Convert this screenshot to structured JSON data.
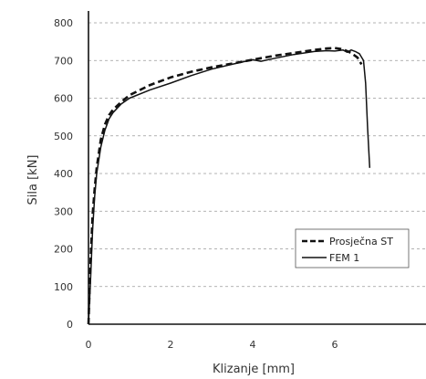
{
  "chart_data": {
    "type": "line",
    "xlabel": "Klizanje [mm]",
    "ylabel": "Sila [kN]",
    "xlim": [
      0,
      8
    ],
    "ylim": [
      0,
      800
    ],
    "xticks": [
      0,
      2,
      4,
      6
    ],
    "yticks": [
      0,
      100,
      200,
      300,
      400,
      500,
      600,
      700,
      800
    ],
    "grid": "horizontal dashed",
    "legend_position": "lower-right",
    "series": [
      {
        "name": "Prosječna ST",
        "style": "dashed",
        "color": "#111111",
        "x": [
          0,
          0.05,
          0.1,
          0.15,
          0.2,
          0.3,
          0.4,
          0.5,
          0.6,
          0.8,
          1.0,
          1.5,
          2.0,
          2.5,
          3.0,
          3.5,
          4.0,
          4.5,
          5.0,
          5.5,
          5.8,
          6.0,
          6.2,
          6.4,
          6.55,
          6.65
        ],
        "y": [
          0,
          170,
          290,
          360,
          415,
          490,
          530,
          555,
          570,
          590,
          608,
          635,
          655,
          670,
          682,
          692,
          702,
          712,
          720,
          728,
          732,
          733,
          730,
          720,
          708,
          690
        ]
      },
      {
        "name": "FEM 1",
        "style": "solid",
        "color": "#111111",
        "x": [
          0,
          0.05,
          0.1,
          0.15,
          0.2,
          0.3,
          0.4,
          0.5,
          0.6,
          0.8,
          1.0,
          1.5,
          2.0,
          2.5,
          3.0,
          3.5,
          4.0,
          4.2,
          4.5,
          5.0,
          5.5,
          5.8,
          6.0,
          6.2,
          6.3,
          6.4,
          6.5,
          6.6,
          6.7,
          6.75,
          6.8,
          6.85
        ],
        "y": [
          0,
          120,
          250,
          340,
          400,
          470,
          515,
          545,
          562,
          585,
          600,
          622,
          640,
          660,
          677,
          690,
          702,
          698,
          705,
          716,
          724,
          726,
          725,
          728,
          722,
          728,
          724,
          718,
          700,
          640,
          520,
          415
        ]
      }
    ]
  }
}
